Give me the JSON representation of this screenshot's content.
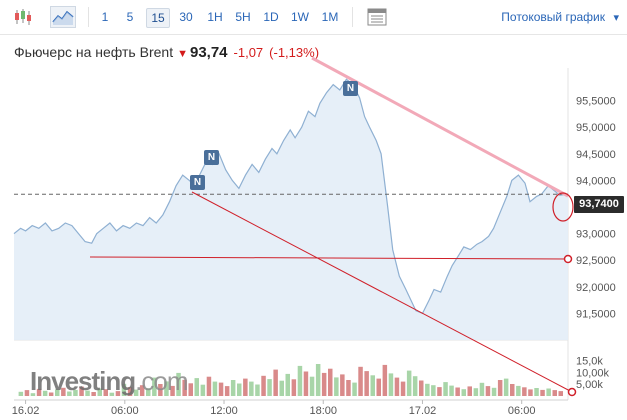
{
  "toolbar": {
    "timeframes": [
      "1",
      "5",
      "15",
      "30",
      "1H",
      "5H",
      "1D",
      "1W",
      "1M"
    ],
    "active_timeframe": "15",
    "stream_label": "Потоковый график",
    "icons": [
      "candlestick-icon",
      "area-chart-icon",
      "table-icon",
      "chevron-down-icon"
    ]
  },
  "header": {
    "instrument": "Фьючерс на нефть Brent",
    "price": "93,74",
    "change": "-1,07",
    "change_pct": "(-1,13%)",
    "direction_icon": "down-arrow-icon"
  },
  "price_label": "93,7400",
  "watermark": {
    "brand": "Investing",
    "suffix": ".com"
  },
  "news_markers": [
    "N",
    "N",
    "N"
  ],
  "colors": {
    "down": "#d31b1b",
    "accent": "#2a66b7",
    "area_line": "#8fb0d2",
    "area_fill": "#e3edf7",
    "trendline_pink": "#f2a9b8",
    "trendline_red": "#d0202a",
    "volume_up": "#a8d5a8",
    "volume_down": "#d98a8a"
  },
  "chart_data": {
    "type": "area",
    "y_tick_labels": [
      "95,5000",
      "95,0000",
      "94,5000",
      "94,0000",
      "93,0000",
      "92,5000",
      "92,0000",
      "91,5000"
    ],
    "y_ticks": [
      95.5,
      95.0,
      94.5,
      94.0,
      93.0,
      92.5,
      92.0,
      91.5
    ],
    "ylim": [
      91.0,
      96.0
    ],
    "x_labels": [
      "16.02",
      "06:00",
      "12:00",
      "18:00",
      "17.02",
      "06:00"
    ],
    "x_label_hours": [
      0,
      6,
      12,
      18,
      24,
      30
    ],
    "xlim": [
      -0.7,
      32.8
    ],
    "last_price": 93.74,
    "series": [
      {
        "hours": [
          -0.7,
          -0.3,
          0.0,
          0.4,
          0.8,
          1.2,
          1.6,
          2.0,
          2.4,
          2.8,
          3.2,
          3.6,
          4.0,
          4.3,
          4.7,
          5.1,
          5.5,
          5.9,
          6.3,
          6.7,
          7.1,
          7.5,
          7.9,
          8.3,
          8.7,
          9.1,
          9.5,
          9.9,
          10.2,
          10.6,
          11.0,
          11.3,
          11.7,
          12.1,
          12.5,
          12.9,
          13.3,
          13.7,
          14.1,
          14.5,
          14.9,
          15.2,
          15.6,
          16.0,
          16.3,
          16.7,
          17.1,
          17.5,
          17.8,
          18.2,
          18.6,
          19.0,
          19.4,
          19.8,
          20.2,
          20.5,
          20.8,
          21.2,
          21.5,
          21.9,
          22.2,
          22.6,
          23.0,
          23.3,
          23.6,
          24.0,
          24.4,
          24.7,
          25.1,
          25.5,
          25.8,
          26.2,
          26.5,
          26.9,
          27.3,
          27.6,
          28.0,
          28.3,
          28.7,
          29.1,
          29.4,
          29.8,
          30.2,
          30.5,
          30.9,
          31.2,
          31.6,
          32.0,
          32.3,
          32.8
        ],
        "values": [
          93.0,
          93.1,
          93.05,
          93.15,
          93.1,
          93.2,
          93.05,
          93.1,
          93.2,
          93.15,
          93.0,
          92.85,
          92.82,
          93.0,
          93.1,
          93.2,
          93.05,
          93.15,
          93.1,
          93.2,
          93.15,
          93.3,
          93.2,
          93.35,
          93.6,
          93.9,
          94.1,
          94.0,
          93.9,
          94.15,
          94.4,
          94.3,
          94.5,
          94.2,
          94.0,
          93.85,
          94.1,
          94.3,
          94.15,
          94.4,
          94.6,
          94.5,
          94.75,
          94.95,
          94.8,
          95.0,
          95.3,
          95.2,
          95.45,
          95.65,
          95.8,
          95.7,
          95.9,
          95.8,
          95.55,
          95.2,
          95.0,
          94.75,
          94.5,
          93.5,
          92.7,
          92.2,
          91.95,
          91.75,
          91.55,
          91.5,
          91.75,
          91.95,
          91.9,
          92.2,
          92.4,
          92.6,
          92.75,
          92.7,
          92.8,
          92.85,
          92.95,
          93.1,
          93.4,
          93.7,
          94.0,
          94.1,
          93.95,
          93.6,
          93.7,
          93.74,
          93.9,
          93.8,
          93.72,
          93.74
        ]
      }
    ],
    "volume_ticks": [
      "15,0k",
      "10,00k",
      "5,00k"
    ],
    "volume_tick_values": [
      15000,
      10000,
      5000
    ],
    "volume_max": 17000,
    "volume": [
      1800,
      2500,
      1200,
      3000,
      2200,
      1500,
      2800,
      3500,
      1900,
      2600,
      4000,
      2300,
      1700,
      3200,
      2900,
      1400,
      2100,
      5200,
      3800,
      2700,
      4600,
      3300,
      7800,
      5100,
      6200,
      4300,
      9800,
      6900,
      5400,
      7600,
      4800,
      8200,
      6100,
      5700,
      4200,
      6800,
      5300,
      7400,
      6100,
      4900,
      8600,
      7200,
      11200,
      6500,
      9400,
      7100,
      12800,
      10400,
      8200,
      13600,
      9800,
      11600,
      7900,
      9200,
      6800,
      5700,
      12400,
      10600,
      8800,
      7400,
      13200,
      9600,
      7800,
      6100,
      10800,
      8400,
      6600,
      5200,
      4600,
      3800,
      5900,
      4400,
      3600,
      2900,
      4100,
      3300,
      5600,
      4200,
      3500,
      6800,
      7400,
      5100,
      4300,
      3700,
      2800,
      3400,
      2600,
      3200,
      2500,
      2100
    ],
    "volume_up": [
      true,
      false,
      true,
      false,
      true,
      false,
      true,
      false,
      true,
      true,
      false,
      true,
      false,
      true,
      false,
      true,
      false,
      true,
      false,
      true,
      false,
      true,
      true,
      false,
      true,
      false,
      true,
      false,
      false,
      true,
      true,
      false,
      true,
      false,
      false,
      true,
      true,
      false,
      true,
      true,
      false,
      true,
      false,
      true,
      true,
      false,
      true,
      false,
      true,
      true,
      false,
      false,
      true,
      false,
      false,
      true,
      false,
      false,
      true,
      false,
      false,
      true,
      false,
      false,
      true,
      true,
      false,
      true,
      true,
      false,
      true,
      true,
      false,
      true,
      false,
      true,
      true,
      false,
      true,
      false,
      true,
      false,
      true,
      false,
      false,
      true,
      false,
      true,
      false,
      false
    ]
  }
}
